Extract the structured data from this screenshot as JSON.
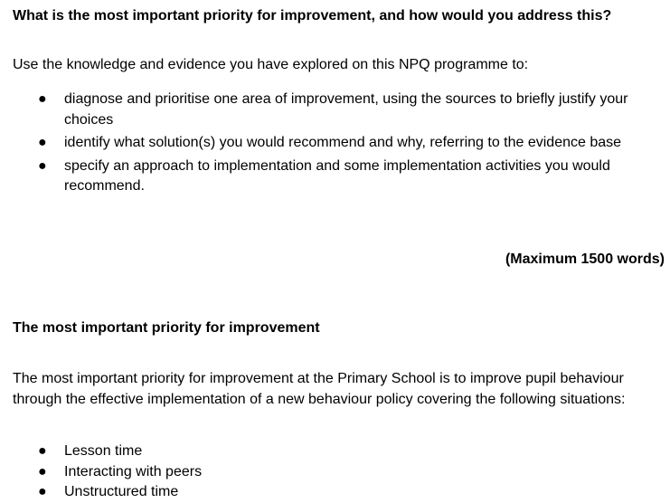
{
  "question": {
    "title": "What is the most important priority for improvement, and how would you address this?",
    "intro": "Use the knowledge and evidence you have explored on this NPQ programme to:",
    "bullets": [
      "diagnose and prioritise one area of improvement, using the sources to briefly justify your choices",
      "identify what solution(s) you would recommend and why, referring to the evidence base",
      "specify an approach to implementation and some implementation activities you would recommend."
    ],
    "word_limit": "(Maximum 1500 words)"
  },
  "answer": {
    "heading": "The most important priority for improvement",
    "paragraph": "The most important priority for improvement at the Primary School is to improve pupil behaviour through the effective implementation of a new behaviour policy covering the following situations:",
    "bullets": [
      "Lesson time",
      "Interacting with peers",
      "Unstructured time"
    ]
  }
}
